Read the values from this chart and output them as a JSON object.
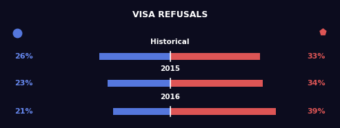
{
  "title": "VISA REFUSALS",
  "bg_color": "#0c0c1e",
  "bar_rows": [
    {
      "label": "Historical",
      "blue_pct": 26,
      "red_pct": 33
    },
    {
      "label": "2015",
      "blue_pct": 23,
      "red_pct": 34
    },
    {
      "label": "2016",
      "blue_pct": 21,
      "red_pct": 39
    }
  ],
  "blue_color": "#5577dd",
  "red_color": "#dd5555",
  "blue_text_color": "#6688ee",
  "red_text_color": "#dd5555",
  "center_label_color": "#ffffff",
  "title_color": "#ffffff",
  "divider_color": "#ffffff",
  "figsize": [
    4.93,
    1.86
  ],
  "dpi": 100
}
